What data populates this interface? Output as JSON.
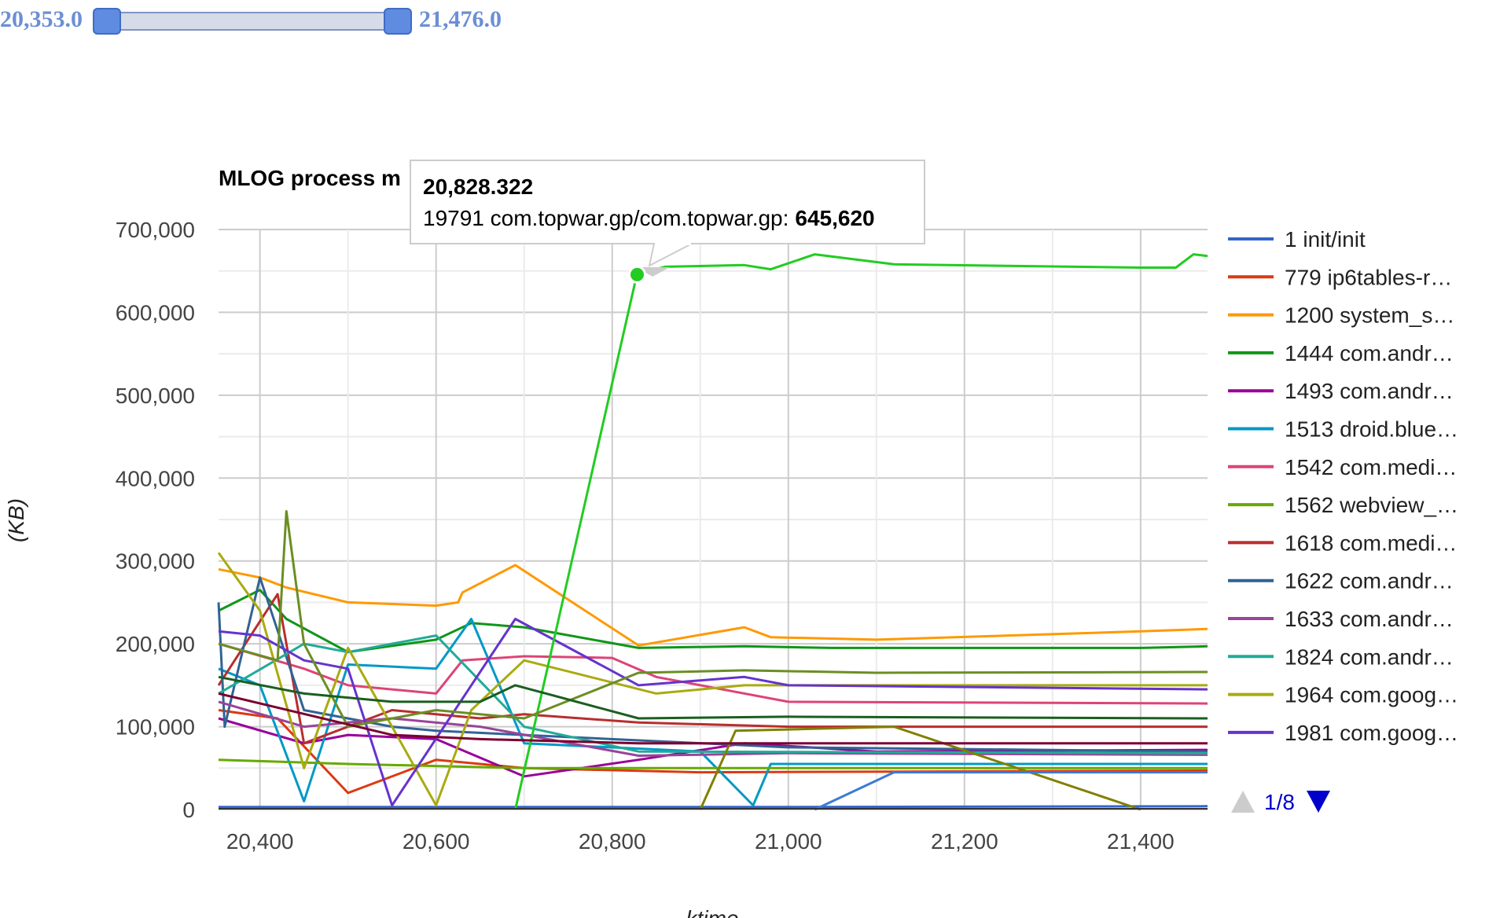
{
  "range_filter": {
    "min_label": "20,353.0",
    "max_label": "21,476.0"
  },
  "legend_pager": {
    "label": "1/8"
  },
  "tooltip": {
    "x_label": "20,828.322",
    "series_label": "19791 com.topwar.gp/com.topwar.gp:",
    "value_label": "645,620"
  },
  "colors": {
    "accent": "#6b8fd6",
    "grid": "#cccccc",
    "highlight": "#22cc22"
  },
  "icons": {
    "prev": "triangle-up-icon",
    "next": "triangle-down-icon"
  },
  "chart_data": {
    "type": "line",
    "title": "MLOG process m",
    "xlabel": "ktime",
    "ylabel": "(KB)",
    "xlim": [
      20353,
      21476
    ],
    "ylim": [
      0,
      700000
    ],
    "x_ticks": [
      "20,400",
      "20,600",
      "20,800",
      "21,000",
      "21,200",
      "21,400"
    ],
    "y_ticks": [
      "0",
      "100,000",
      "200,000",
      "300,000",
      "400,000",
      "500,000",
      "600,000",
      "700,000"
    ],
    "grid": true,
    "legend_position": "right",
    "series": [
      {
        "name": "1 init/init",
        "color": "#3366cc",
        "points": [
          [
            20353,
            3000
          ],
          [
            20700,
            3000
          ],
          [
            21000,
            3000
          ],
          [
            21476,
            4000
          ]
        ]
      },
      {
        "name": "779 ip6tables-r…",
        "color": "#dc3912",
        "points": [
          [
            20353,
            120000
          ],
          [
            20420,
            110000
          ],
          [
            20500,
            20000
          ],
          [
            20600,
            60000
          ],
          [
            20700,
            50000
          ],
          [
            20900,
            45000
          ],
          [
            21476,
            47000
          ]
        ]
      },
      {
        "name": "1200 system_s…",
        "color": "#ff9900",
        "points": [
          [
            20353,
            290000
          ],
          [
            20400,
            280000
          ],
          [
            20430,
            268000
          ],
          [
            20500,
            250000
          ],
          [
            20600,
            246000
          ],
          [
            20625,
            250000
          ],
          [
            20630,
            262000
          ],
          [
            20690,
            295000
          ],
          [
            20830,
            198000
          ],
          [
            20950,
            220000
          ],
          [
            20980,
            208000
          ],
          [
            21100,
            205000
          ],
          [
            21400,
            215000
          ],
          [
            21476,
            218000
          ]
        ]
      },
      {
        "name": "1444 com.andr…",
        "color": "#109618",
        "points": [
          [
            20353,
            240000
          ],
          [
            20400,
            265000
          ],
          [
            20430,
            230000
          ],
          [
            20500,
            190000
          ],
          [
            20600,
            205000
          ],
          [
            20640,
            225000
          ],
          [
            20700,
            220000
          ],
          [
            20830,
            195000
          ],
          [
            20950,
            197000
          ],
          [
            21050,
            195000
          ],
          [
            21400,
            195000
          ],
          [
            21476,
            197000
          ]
        ]
      },
      {
        "name": "1493 com.andr…",
        "color": "#990099",
        "points": [
          [
            20353,
            110000
          ],
          [
            20450,
            80000
          ],
          [
            20500,
            90000
          ],
          [
            20600,
            85000
          ],
          [
            20700,
            40000
          ],
          [
            20830,
            60000
          ],
          [
            20950,
            80000
          ],
          [
            21100,
            70000
          ],
          [
            21476,
            72000
          ]
        ]
      },
      {
        "name": "1513 droid.blue…",
        "color": "#0099c6",
        "points": [
          [
            20353,
            170000
          ],
          [
            20400,
            150000
          ],
          [
            20450,
            10000
          ],
          [
            20500,
            175000
          ],
          [
            20600,
            170000
          ],
          [
            20640,
            230000
          ],
          [
            20700,
            80000
          ],
          [
            20900,
            70000
          ],
          [
            20960,
            5000
          ],
          [
            20980,
            55000
          ],
          [
            21476,
            55000
          ]
        ]
      },
      {
        "name": "1542 com.medi…",
        "color": "#dd4477",
        "points": [
          [
            20353,
            200000
          ],
          [
            20450,
            170000
          ],
          [
            20500,
            150000
          ],
          [
            20600,
            140000
          ],
          [
            20630,
            180000
          ],
          [
            20700,
            185000
          ],
          [
            20800,
            183000
          ],
          [
            20850,
            160000
          ],
          [
            21000,
            130000
          ],
          [
            21476,
            128000
          ]
        ]
      },
      {
        "name": "1562 webview_…",
        "color": "#66aa00",
        "points": [
          [
            20353,
            60000
          ],
          [
            20500,
            55000
          ],
          [
            20700,
            50000
          ],
          [
            21476,
            50000
          ]
        ]
      },
      {
        "name": "1618 com.medi…",
        "color": "#b82e2e",
        "points": [
          [
            20353,
            150000
          ],
          [
            20420,
            260000
          ],
          [
            20450,
            80000
          ],
          [
            20550,
            120000
          ],
          [
            20650,
            110000
          ],
          [
            20700,
            115000
          ],
          [
            20830,
            105000
          ],
          [
            21000,
            100000
          ],
          [
            21476,
            100000
          ]
        ]
      },
      {
        "name": "1622 com.andr…",
        "color": "#316395",
        "points": [
          [
            20353,
            250000
          ],
          [
            20360,
            100000
          ],
          [
            20400,
            280000
          ],
          [
            20450,
            120000
          ],
          [
            20550,
            100000
          ],
          [
            20600,
            95000
          ],
          [
            20700,
            90000
          ],
          [
            21000,
            75000
          ],
          [
            21476,
            70000
          ]
        ]
      },
      {
        "name": "1633 com.andr…",
        "color": "#994499",
        "points": [
          [
            20353,
            130000
          ],
          [
            20450,
            100000
          ],
          [
            20550,
            110000
          ],
          [
            20650,
            100000
          ],
          [
            20830,
            65000
          ],
          [
            21000,
            68000
          ],
          [
            21476,
            66000
          ]
        ]
      },
      {
        "name": "1824 com.andr…",
        "color": "#22aa99",
        "points": [
          [
            20353,
            140000
          ],
          [
            20450,
            200000
          ],
          [
            20500,
            190000
          ],
          [
            20600,
            210000
          ],
          [
            20700,
            100000
          ],
          [
            20830,
            70000
          ],
          [
            21476,
            68000
          ]
        ]
      },
      {
        "name": "1964 com.goog…",
        "color": "#aaaa11",
        "points": [
          [
            20353,
            310000
          ],
          [
            20400,
            240000
          ],
          [
            20450,
            50000
          ],
          [
            20500,
            195000
          ],
          [
            20600,
            5000
          ],
          [
            20640,
            120000
          ],
          [
            20700,
            180000
          ],
          [
            20850,
            140000
          ],
          [
            20950,
            150000
          ],
          [
            21476,
            150000
          ]
        ]
      },
      {
        "name": "1981 com.goog…",
        "color": "#6633cc",
        "points": [
          [
            20353,
            215000
          ],
          [
            20400,
            210000
          ],
          [
            20450,
            180000
          ],
          [
            20500,
            170000
          ],
          [
            20550,
            5000
          ],
          [
            20640,
            150000
          ],
          [
            20690,
            230000
          ],
          [
            20830,
            150000
          ],
          [
            20950,
            160000
          ],
          [
            21000,
            150000
          ],
          [
            21476,
            145000
          ]
        ]
      },
      {
        "name": "",
        "color": "#22cc22",
        "points": [
          [
            20690,
            0
          ],
          [
            20828,
            645620
          ],
          [
            20860,
            655000
          ],
          [
            20950,
            657000
          ],
          [
            20980,
            652000
          ],
          [
            21030,
            670000
          ],
          [
            21120,
            658000
          ],
          [
            21400,
            654000
          ],
          [
            21440,
            654000
          ],
          [
            21460,
            670000
          ],
          [
            21476,
            668000
          ]
        ]
      },
      {
        "name": "",
        "color": "#6b8e23",
        "points": [
          [
            20353,
            200000
          ],
          [
            20420,
            180000
          ],
          [
            20430,
            360000
          ],
          [
            20450,
            200000
          ],
          [
            20500,
            100000
          ],
          [
            20600,
            120000
          ],
          [
            20700,
            110000
          ],
          [
            20830,
            165000
          ],
          [
            20950,
            168000
          ],
          [
            21100,
            165000
          ],
          [
            21476,
            166000
          ]
        ]
      },
      {
        "name": "",
        "color": "#1b5e20",
        "points": [
          [
            20353,
            160000
          ],
          [
            20450,
            140000
          ],
          [
            20550,
            130000
          ],
          [
            20650,
            130000
          ],
          [
            20690,
            150000
          ],
          [
            20830,
            110000
          ],
          [
            21000,
            112000
          ],
          [
            21476,
            110000
          ]
        ]
      },
      {
        "name": "",
        "color": "#808000",
        "points": [
          [
            20900,
            0
          ],
          [
            20940,
            95000
          ],
          [
            21120,
            100000
          ],
          [
            21400,
            0
          ]
        ]
      },
      {
        "name": "",
        "color": "#3a7bd5",
        "points": [
          [
            21030,
            0
          ],
          [
            21120,
            45000
          ],
          [
            21476,
            45000
          ]
        ]
      },
      {
        "name": "",
        "color": "#7a0030",
        "points": [
          [
            20353,
            140000
          ],
          [
            20550,
            90000
          ],
          [
            20650,
            85000
          ],
          [
            20830,
            80000
          ],
          [
            21476,
            80000
          ]
        ]
      }
    ]
  }
}
